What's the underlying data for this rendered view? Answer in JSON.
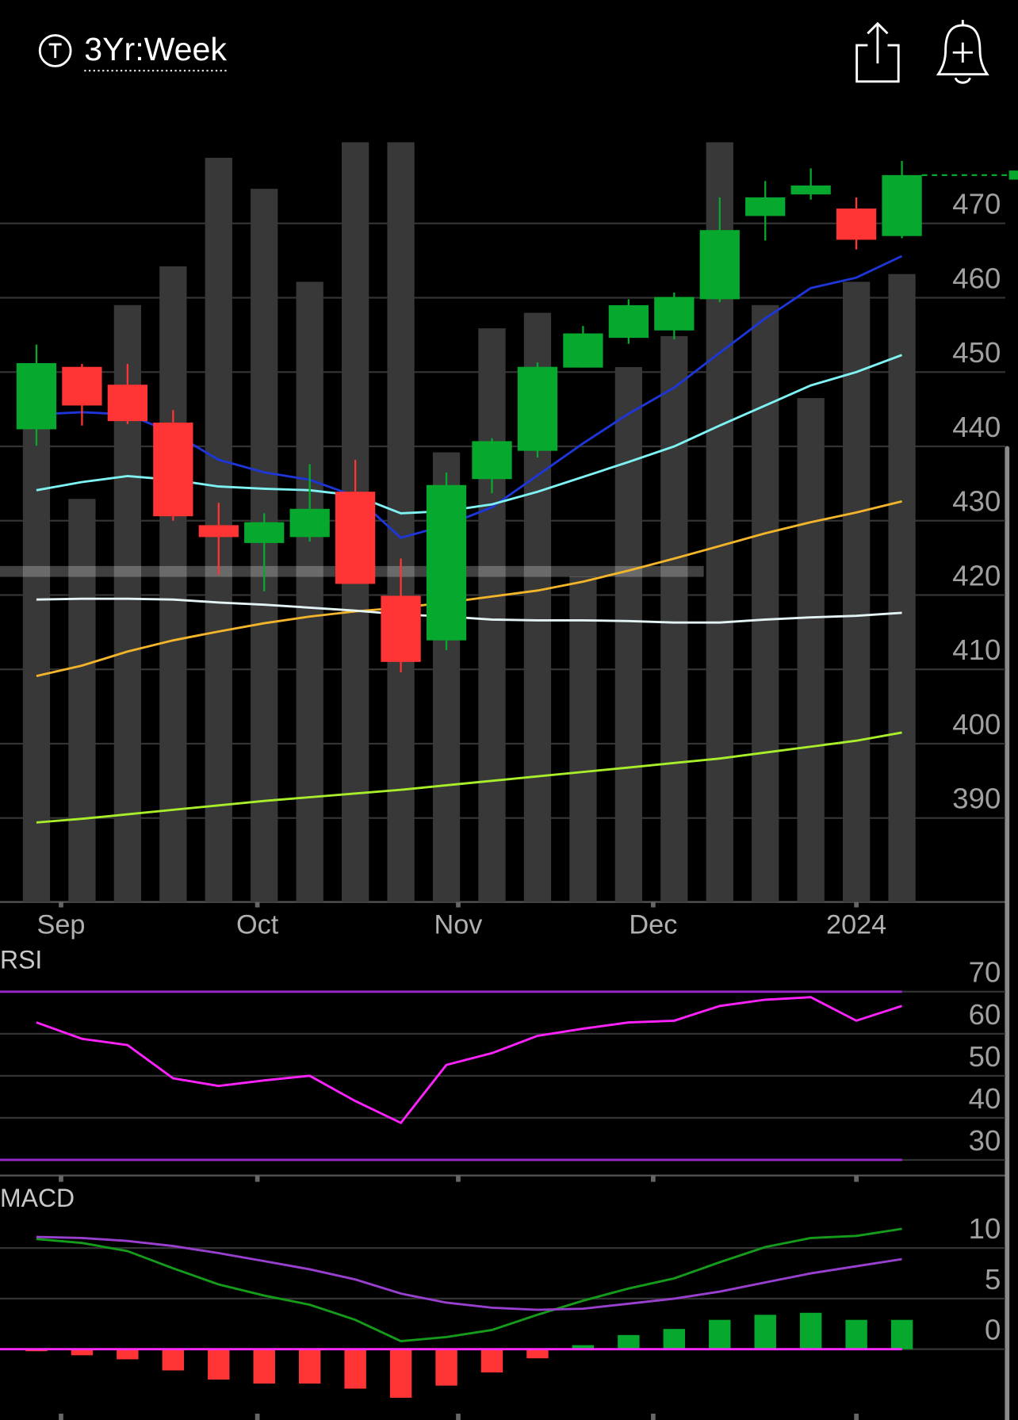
{
  "header": {
    "title": "3Yr:Week"
  },
  "chart_data": [
    {
      "type": "candlestick",
      "x": [
        0,
        1,
        2,
        3,
        4,
        5,
        6,
        7,
        8,
        9,
        10,
        11,
        12,
        13,
        14,
        15,
        16,
        17,
        18,
        19
      ],
      "open": [
        442.3,
        450.7,
        448.3,
        443.2,
        429.4,
        427.0,
        427.8,
        433.9,
        419.9,
        413.9,
        435.6,
        439.4,
        450.6,
        454.6,
        455.6,
        459.8,
        471.0,
        473.9,
        472.0,
        468.3
      ],
      "high": [
        453.7,
        451.1,
        451.1,
        444.9,
        432.4,
        431.0,
        437.6,
        438.2,
        424.9,
        436.5,
        441.1,
        451.3,
        456.2,
        459.8,
        460.7,
        473.5,
        475.7,
        477.4,
        473.5,
        478.4
      ],
      "low": [
        440.1,
        442.8,
        443.0,
        430.0,
        422.7,
        420.5,
        427.2,
        421.5,
        409.6,
        412.6,
        433.7,
        438.5,
        450.6,
        453.8,
        454.4,
        459.4,
        467.7,
        473.2,
        466.5,
        468.0
      ],
      "close": [
        451.2,
        445.5,
        443.4,
        430.6,
        427.8,
        429.8,
        431.6,
        421.5,
        411.0,
        434.8,
        440.7,
        450.7,
        455.2,
        459.0,
        460.1,
        469.1,
        473.5,
        475.1,
        467.8,
        476.5
      ],
      "up_color": "#06a82d",
      "down_color": "#ff3535",
      "volume": {
        "values": [
          68,
          52,
          77,
          82,
          96,
          92,
          80,
          98,
          98,
          58,
          74,
          76,
          42,
          69,
          73,
          98,
          77,
          65,
          80,
          81
        ],
        "color": "#383838",
        "ylim": [
          0,
          100
        ]
      },
      "series": [
        {
          "color": "#1e36d8",
          "values": [
            444.3,
            444.6,
            444.3,
            441.8,
            438.2,
            436.5,
            435.5,
            433.3,
            427.7,
            429.4,
            431.8,
            436.1,
            440.4,
            444.4,
            447.9,
            452.6,
            457.2,
            461.3,
            462.7,
            465.6
          ]
        },
        {
          "color": "#7ff3f3",
          "values": [
            434.1,
            435.2,
            436.0,
            435.5,
            434.6,
            434.3,
            434.1,
            433.4,
            431.0,
            431.3,
            432.2,
            433.9,
            435.9,
            437.9,
            440.0,
            442.8,
            445.5,
            448.2,
            450.0,
            452.3
          ]
        },
        {
          "color": "#f3b52a",
          "values": [
            409.1,
            410.5,
            412.4,
            413.9,
            415.1,
            416.2,
            417.1,
            417.8,
            418.3,
            419.0,
            419.8,
            420.6,
            421.8,
            423.3,
            424.9,
            426.6,
            428.3,
            429.8,
            431.1,
            432.6
          ]
        },
        {
          "color": "#e4f4f4",
          "values": [
            419.4,
            419.5,
            419.5,
            419.4,
            419.0,
            418.7,
            418.3,
            417.9,
            417.4,
            417.1,
            416.7,
            416.6,
            416.6,
            416.5,
            416.3,
            416.3,
            416.7,
            417.0,
            417.2,
            417.6
          ]
        },
        {
          "color": "#a8ee2a",
          "values": [
            389.4,
            389.9,
            390.5,
            391.1,
            391.7,
            392.3,
            392.8,
            393.3,
            393.8,
            394.4,
            395.0,
            395.6,
            396.2,
            396.8,
            397.4,
            398.0,
            398.8,
            399.6,
            400.4,
            401.5
          ]
        }
      ],
      "xlim": [
        -0.8,
        21.27
      ],
      "xticks": [
        {
          "value": 0.54,
          "label": "Sep"
        },
        {
          "value": 4.85,
          "label": "Oct"
        },
        {
          "value": 9.26,
          "label": "Nov"
        },
        {
          "value": 13.54,
          "label": "Dec"
        },
        {
          "value": 18.0,
          "label": "2024"
        }
      ],
      "ylim": [
        378.7,
        483
      ],
      "yticks": [
        390,
        400,
        410,
        420,
        430,
        440,
        450,
        460,
        470
      ],
      "grid": true
    },
    {
      "type": "line",
      "title": "RSI",
      "series": [
        {
          "color": "#ff22ff",
          "values": [
            62.7,
            58.8,
            57.3,
            49.4,
            47.6,
            48.9,
            50.0,
            44.0,
            38.8,
            52.6,
            55.4,
            59.5,
            61.2,
            62.7,
            63.1,
            66.6,
            68.1,
            68.7,
            63.1,
            66.6
          ]
        }
      ],
      "reference_lines": [
        70,
        30
      ],
      "reference_color": "#9a26cc",
      "ylim": [
        26.3,
        79.7
      ],
      "yticks": [
        30,
        40,
        50,
        60,
        70
      ],
      "grid": true
    },
    {
      "type": "macd",
      "title": "MACD",
      "series": [
        {
          "color": "#159c1a",
          "values": [
            10.9,
            10.5,
            9.7,
            8.0,
            6.4,
            5.3,
            4.4,
            2.9,
            0.8,
            1.2,
            1.9,
            3.4,
            4.8,
            6.0,
            7.0,
            8.6,
            10.1,
            11.0,
            11.2,
            11.9
          ]
        },
        {
          "color": "#9a40d0",
          "values": [
            11.1,
            11.0,
            10.7,
            10.2,
            9.5,
            8.7,
            7.9,
            6.9,
            5.5,
            4.6,
            4.1,
            3.9,
            4.0,
            4.5,
            5.0,
            5.7,
            6.6,
            7.5,
            8.2,
            8.9
          ]
        }
      ],
      "histogram": {
        "values": [
          -0.2,
          -0.6,
          -1.0,
          -2.1,
          -3.0,
          -3.4,
          -3.4,
          -3.9,
          -4.8,
          -3.6,
          -2.3,
          -0.9,
          0.4,
          1.4,
          2.0,
          2.9,
          3.4,
          3.6,
          2.9,
          2.9
        ],
        "positive_color": "#06a82d",
        "negative_color": "#ff3535"
      },
      "reference_lines": [
        0
      ],
      "reference_color": "#ff2bff",
      "ylim": [
        -7,
        16.1
      ],
      "yticks": [
        0,
        5,
        10
      ],
      "grid": true
    }
  ]
}
